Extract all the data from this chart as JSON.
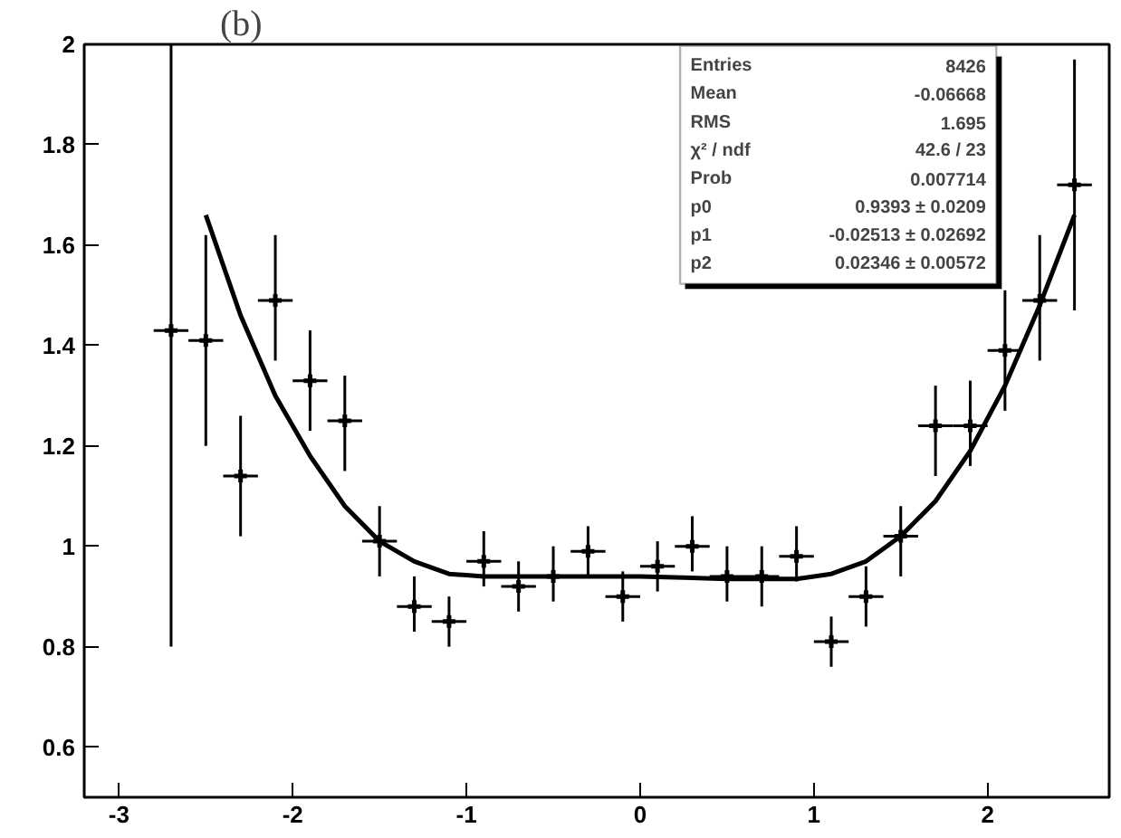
{
  "chart_data": {
    "type": "scatter",
    "title": "(b)",
    "xlim": [
      -3.2,
      2.7
    ],
    "ylim": [
      0.5,
      2
    ],
    "xticks": [
      -3,
      -2,
      -1,
      0,
      1,
      2
    ],
    "yticks": [
      0.6,
      0.8,
      1,
      1.2,
      1.4,
      1.6,
      1.8,
      2
    ],
    "grid": false,
    "series": [
      {
        "color": "#000000",
        "marker": "cross",
        "x": [
          -2.7,
          -2.5,
          -2.3,
          -2.1,
          -1.9,
          -1.7,
          -1.5,
          -1.3,
          -1.1,
          -0.9,
          -0.7,
          -0.5,
          -0.3,
          -0.1,
          0.1,
          0.3,
          0.5,
          0.7,
          0.9,
          1.1,
          1.3,
          1.5,
          1.7,
          1.9,
          2.1,
          2.3,
          2.5
        ],
        "values": [
          1.43,
          1.41,
          1.14,
          1.49,
          1.33,
          1.25,
          1.01,
          0.88,
          0.85,
          0.97,
          0.92,
          0.94,
          0.99,
          0.9,
          0.96,
          1.0,
          0.94,
          0.94,
          0.98,
          0.81,
          0.9,
          1.02,
          1.24,
          1.24,
          1.39,
          1.49,
          1.72
        ],
        "errors": [
          [
            0.8,
            2.0
          ],
          [
            1.2,
            1.62
          ],
          [
            1.02,
            1.26
          ],
          [
            1.37,
            1.62
          ],
          [
            1.23,
            1.43
          ],
          [
            1.15,
            1.34
          ],
          [
            0.94,
            1.08
          ],
          [
            0.83,
            0.94
          ],
          [
            0.8,
            0.9
          ],
          [
            0.92,
            1.03
          ],
          [
            0.87,
            0.97
          ],
          [
            0.89,
            1.0
          ],
          [
            0.94,
            1.04
          ],
          [
            0.85,
            0.95
          ],
          [
            0.91,
            1.01
          ],
          [
            0.95,
            1.06
          ],
          [
            0.89,
            1.0
          ],
          [
            0.88,
            1.0
          ],
          [
            0.93,
            1.04
          ],
          [
            0.76,
            0.86
          ],
          [
            0.84,
            0.96
          ],
          [
            0.94,
            1.08
          ],
          [
            1.14,
            1.32
          ],
          [
            1.16,
            1.33
          ],
          [
            1.27,
            1.51
          ],
          [
            1.37,
            1.62
          ],
          [
            1.47,
            1.97
          ]
        ],
        "xerrors": [
          0.1,
          0.1,
          0.1,
          0.1,
          0.1,
          0.1,
          0.1,
          0.1,
          0.1,
          0.1,
          0.1,
          0.1,
          0.1,
          0.1,
          0.1,
          0.1,
          0.1,
          0.1,
          0.1,
          0.1,
          0.1,
          0.1,
          0.1,
          0.1,
          0.1,
          0.1,
          0.1
        ]
      },
      {
        "type": "line",
        "color": "#000000",
        "line_style": "solid",
        "marker": "none",
        "x": [
          -2.5,
          -2.3,
          -2.1,
          -1.9,
          -1.7,
          -1.5,
          -1.3,
          -1.1,
          -0.9,
          -0.5,
          0,
          0.5,
          0.9,
          1.1,
          1.3,
          1.5,
          1.7,
          1.9,
          2.1,
          2.3,
          2.5
        ],
        "values": [
          1.66,
          1.46,
          1.3,
          1.18,
          1.08,
          1.01,
          0.97,
          0.945,
          0.94,
          0.94,
          0.94,
          0.935,
          0.935,
          0.945,
          0.97,
          1.02,
          1.09,
          1.19,
          1.32,
          1.48,
          1.66
        ]
      }
    ],
    "annotations": [
      "Entries",
      "8426",
      "Mean",
      "-0.06668",
      "RMS",
      "1.695",
      "χ² / ndf",
      "42.6 / 23",
      "Prob",
      "0.007714",
      "p0",
      "0.9393 ± 0.0209",
      "p1",
      "-0.02513 ± 0.02692",
      "p2",
      "0.02346 ± 0.00572"
    ]
  }
}
